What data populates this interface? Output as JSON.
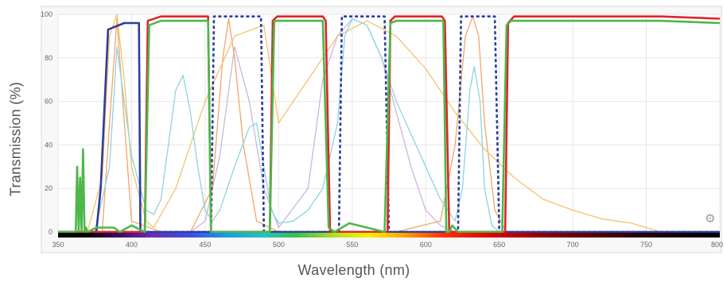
{
  "chart_data": {
    "type": "line",
    "xlabel": "Wavelength (nm)",
    "ylabel": "Transmission (%)",
    "xlim": [
      350,
      800
    ],
    "ylim": [
      0,
      100
    ],
    "xticks": [
      350,
      400,
      450,
      500,
      550,
      600,
      650,
      700,
      750,
      800
    ],
    "yticks": [
      0,
      20,
      40,
      60,
      80,
      100
    ],
    "grid": true,
    "legend": "none",
    "series": [
      {
        "color": "#2b3d9e",
        "style": "solid",
        "x": [
          350,
          376,
          379,
          384,
          395,
          404,
          405,
          406,
          410,
          800
        ],
        "y": [
          0,
          0,
          20,
          93,
          96,
          96,
          96,
          0,
          0,
          0
        ]
      },
      {
        "color": "#2b3d9e",
        "style": "dashed",
        "x": [
          350,
          454,
          456,
          460,
          486,
          488,
          490,
          541,
          543,
          546,
          569,
          572,
          575,
          622,
          624,
          627,
          645,
          647,
          650,
          800
        ],
        "y": [
          0,
          0,
          99,
          99,
          99,
          99,
          0,
          0,
          99,
          99,
          99,
          99,
          0,
          0,
          99,
          99,
          99,
          99,
          0,
          0
        ]
      },
      {
        "color": "#e0242b",
        "style": "solid",
        "x": [
          350,
          409,
          411,
          420,
          450,
          452,
          454,
          494,
          496,
          499,
          530,
          532,
          535,
          574,
          576,
          579,
          611,
          613,
          616,
          654,
          656,
          660,
          700,
          760,
          800
        ],
        "y": [
          0,
          0,
          97,
          99,
          99,
          99,
          0,
          0,
          97,
          99,
          99,
          97,
          0,
          0,
          97,
          99,
          99,
          97,
          0,
          0,
          96,
          99,
          99,
          99,
          98
        ]
      },
      {
        "color": "#4cb848",
        "style": "solid",
        "x": [
          350,
          362,
          363,
          364,
          365,
          366,
          367,
          368,
          369,
          370,
          376,
          388,
          392,
          400,
          409,
          412,
          420,
          450,
          452,
          454,
          494,
          497,
          500,
          530,
          534,
          538,
          548,
          560,
          572,
          576,
          580,
          612,
          614,
          616,
          618,
          622,
          640,
          650,
          652,
          655,
          658,
          700,
          760,
          800
        ],
        "y": [
          0,
          0,
          30,
          0,
          25,
          0,
          38,
          0,
          2,
          0,
          2,
          2,
          0,
          3,
          0,
          95,
          97,
          97,
          97,
          0,
          0,
          97,
          97,
          97,
          2,
          0,
          4,
          2,
          0,
          96,
          97,
          97,
          0,
          0,
          3,
          0,
          0,
          0,
          0,
          95,
          97,
          97,
          97,
          96
        ]
      },
      {
        "color": "#8fd3e0",
        "style": "solid",
        "x": [
          350,
          375,
          385,
          390,
          395,
          400,
          410,
          415,
          420,
          425,
          430,
          435,
          440,
          445,
          450,
          455,
          460,
          470,
          480,
          485,
          490,
          495,
          500,
          510,
          520,
          530,
          540,
          545,
          550,
          560,
          570,
          580,
          590,
          600,
          610,
          620,
          625,
          630,
          633,
          637,
          640,
          645,
          650,
          800
        ],
        "y": [
          0,
          0,
          30,
          85,
          60,
          35,
          10,
          8,
          15,
          40,
          65,
          72,
          55,
          30,
          10,
          5,
          10,
          30,
          48,
          50,
          30,
          10,
          4,
          5,
          10,
          20,
          50,
          90,
          98,
          95,
          80,
          60,
          45,
          30,
          15,
          5,
          20,
          65,
          76,
          60,
          20,
          3,
          0,
          0
        ]
      },
      {
        "color": "#f5c26b",
        "style": "solid",
        "x": [
          350,
          370,
          380,
          385,
          390,
          395,
          400,
          410,
          415,
          430,
          450,
          470,
          490,
          500,
          520,
          540,
          560,
          580,
          600,
          620,
          640,
          660,
          680,
          700,
          720,
          740,
          750,
          760,
          800
        ],
        "y": [
          0,
          0,
          25,
          90,
          100,
          70,
          30,
          5,
          2,
          20,
          60,
          90,
          95,
          50,
          70,
          90,
          97,
          90,
          75,
          55,
          38,
          25,
          15,
          10,
          6,
          4,
          2,
          0,
          0
        ]
      },
      {
        "color": "#f5a46b",
        "style": "solid",
        "x": [
          350,
          380,
          386,
          390,
          394,
          400,
          420,
          440,
          455,
          462,
          466,
          470,
          476,
          485,
          500,
          580,
          610,
          620,
          627,
          632,
          636,
          640,
          647,
          655,
          800
        ],
        "y": [
          0,
          0,
          60,
          98,
          60,
          5,
          0,
          0,
          20,
          80,
          98,
          80,
          40,
          5,
          0,
          0,
          5,
          40,
          90,
          99,
          90,
          50,
          10,
          0,
          0
        ]
      },
      {
        "color": "#c8b7e0",
        "style": "solid",
        "x": [
          350,
          440,
          450,
          460,
          470,
          480,
          490,
          500,
          520,
          530,
          540,
          550,
          560,
          570,
          580,
          590,
          600,
          610,
          620,
          800
        ],
        "y": [
          0,
          0,
          5,
          35,
          85,
          60,
          20,
          2,
          20,
          70,
          90,
          98,
          95,
          80,
          55,
          30,
          10,
          3,
          0,
          0
        ]
      }
    ]
  }
}
